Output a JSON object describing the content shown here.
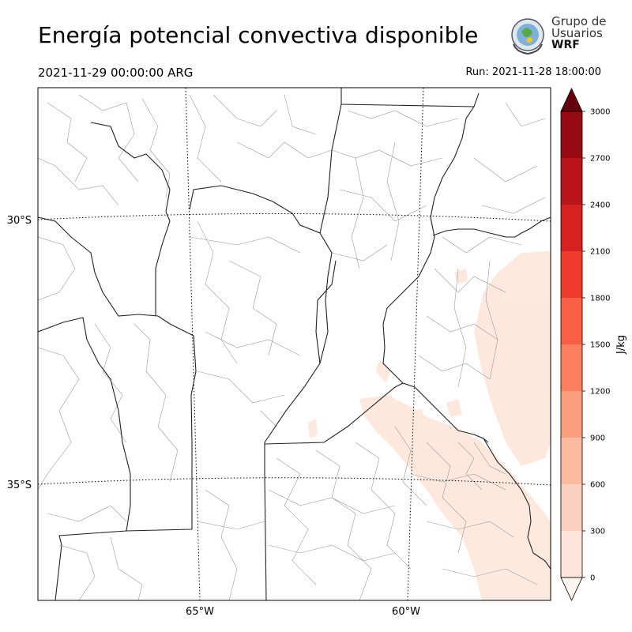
{
  "header": {
    "title": "Energía potencial convectiva disponible",
    "valid_time": "2021-11-29 00:00:00 ARG",
    "run": "Run: 2021-11-28 18:00:00"
  },
  "logo": {
    "line1": "Grupo de",
    "line2": "Usuarios",
    "line3": "WRF"
  },
  "map": {
    "lat_labels": [
      "30°S",
      "35°S"
    ],
    "lon_labels": [
      "65°W",
      "60°W"
    ]
  },
  "colorbar": {
    "label": "J/kg",
    "ticks": [
      "0",
      "300",
      "600",
      "900",
      "1200",
      "1500",
      "1800",
      "2100",
      "2400",
      "2700",
      "3000"
    ],
    "colors": [
      "#fff5f0",
      "#fee5d9",
      "#fcd0be",
      "#fcbba1",
      "#fc9e80",
      "#fb8060",
      "#f85f45",
      "#ef3b2c",
      "#d52221",
      "#b81419",
      "#960b13",
      "#67000d"
    ],
    "extend": "both"
  }
}
